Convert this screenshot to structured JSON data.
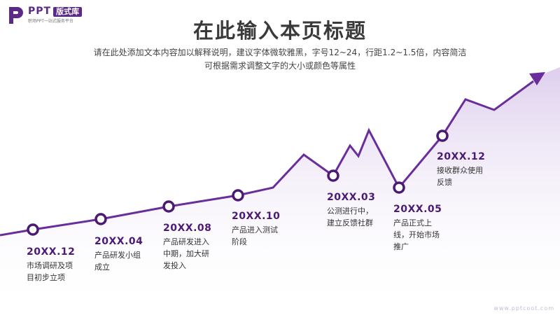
{
  "logo": {
    "brand": "PPT",
    "badge": "版式库",
    "tagline": "职场PPT一站式服务平台",
    "icon": "logo-p-icon"
  },
  "header": {
    "title": "在此输入本页标题",
    "subtitle_line1": "请在此处添加文本内容加以解释说明，建议字体微软雅黑，字号12~24，行距1.2~1.5倍，内容简洁",
    "subtitle_line2": "可根据需求调整文字的大小或颜色等属性"
  },
  "milestones": [
    {
      "date": "20XX.12",
      "desc": "市场调研及项目初步立项"
    },
    {
      "date": "20XX.04",
      "desc": "产品研发小组成立"
    },
    {
      "date": "20XX.08",
      "desc": "产品研发进入中期，加大研发投入"
    },
    {
      "date": "20XX.10",
      "desc": "产品进入测试阶段"
    },
    {
      "date": "20XX.03",
      "desc": "公测进行中，建立反馈社群"
    },
    {
      "date": "20XX.05",
      "desc": "产品正式上线，开始市场推广"
    },
    {
      "date": "20XX.12",
      "desc": "接收群众使用反馈"
    }
  ],
  "colors": {
    "accent": "#6a2d9c",
    "accent_dark": "#4b1a74",
    "area_top": "#c9b2e0",
    "node_fill": "#ffffff"
  },
  "footer": {
    "url": "www.pptcoot.com"
  }
}
